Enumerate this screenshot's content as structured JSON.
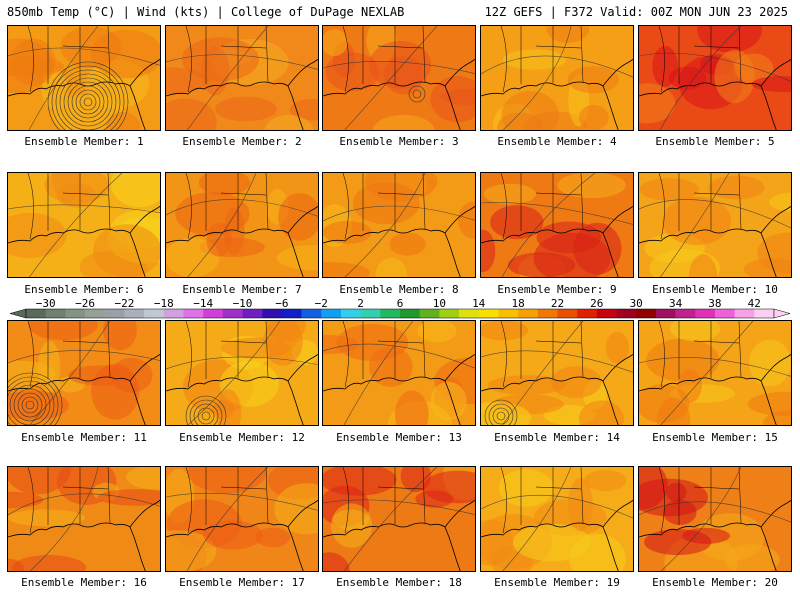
{
  "header": {
    "left": "850mb Temp (°C) | Wind (kts) | College of DuPage NEXLAB",
    "right": "12Z GEFS | F372 Valid: 00Z MON JUN 23 2025"
  },
  "colorbar": {
    "tick_labels": [
      "−30",
      "−26",
      "−22",
      "−18",
      "−14",
      "−10",
      "−6",
      "−2",
      "2",
      "6",
      "10",
      "14",
      "18",
      "22",
      "26",
      "30",
      "34",
      "38",
      "42"
    ],
    "min": -32,
    "max": 44,
    "step": 2,
    "colors": [
      "#5a6a5a",
      "#6e806e",
      "#849484",
      "#96a096",
      "#9aa0a8",
      "#aab0bc",
      "#c0c8d8",
      "#d0a0e0",
      "#e070e8",
      "#d040d8",
      "#a030c8",
      "#7020c0",
      "#3010b0",
      "#1020c8",
      "#1060e0",
      "#10a0f0",
      "#30d0e8",
      "#30d0b0",
      "#20b860",
      "#209830",
      "#60b020",
      "#a0d010",
      "#e0e010",
      "#f8e000",
      "#f8c000",
      "#f8a000",
      "#f07800",
      "#e85000",
      "#e02000",
      "#c80010",
      "#a00020",
      "#900000",
      "#a01060",
      "#c02090",
      "#e030b8",
      "#f060d8",
      "#f8a0e8",
      "#fcd0f0"
    ]
  },
  "members": [
    {
      "label": "Ensemble Member: 1",
      "base": "#f39b14",
      "hot": "#ef7a10",
      "cool": "#f7b81c"
    },
    {
      "label": "Ensemble Member: 2",
      "base": "#f0881a",
      "hot": "#ec6818",
      "cool": "#f5ac20"
    },
    {
      "label": "Ensemble Member: 3",
      "base": "#ef7a15",
      "hot": "#e9521a",
      "cool": "#f6a91c"
    },
    {
      "label": "Ensemble Member: 4",
      "base": "#f49f16",
      "hot": "#ef7a14",
      "cool": "#f8c21c"
    },
    {
      "label": "Ensemble Member: 5",
      "base": "#ea4a15",
      "hot": "#d8141c",
      "cool": "#f2821a"
    },
    {
      "label": "Ensemble Member: 6",
      "base": "#f5b018",
      "hot": "#f08a14",
      "cool": "#f8d41c"
    },
    {
      "label": "Ensemble Member: 7",
      "base": "#f29416",
      "hot": "#ec6414",
      "cool": "#f7b41a"
    },
    {
      "label": "Ensemble Member: 8",
      "base": "#f39a16",
      "hot": "#ef7412",
      "cool": "#f7bc1c"
    },
    {
      "label": "Ensemble Member: 9",
      "base": "#ef7a14",
      "hot": "#d82018",
      "cool": "#f6ac1a"
    },
    {
      "label": "Ensemble Member: 10",
      "base": "#f4a418",
      "hot": "#f08214",
      "cool": "#f8c81c"
    },
    {
      "label": "Ensemble Member: 11",
      "base": "#f28c16",
      "hot": "#ec5c16",
      "cool": "#f6b41a"
    },
    {
      "label": "Ensemble Member: 12",
      "base": "#f5aa18",
      "hot": "#f08214",
      "cool": "#f8d21c"
    },
    {
      "label": "Ensemble Member: 13",
      "base": "#f39a16",
      "hot": "#ee6a14",
      "cool": "#f7bc1a"
    },
    {
      "label": "Ensemble Member: 14",
      "base": "#f5a818",
      "hot": "#f08414",
      "cool": "#f8d01c"
    },
    {
      "label": "Ensemble Member: 15",
      "base": "#f4a416",
      "hot": "#f07a12",
      "cool": "#f8c81c"
    },
    {
      "label": "Ensemble Member: 16",
      "base": "#f08a16",
      "hot": "#e84a18",
      "cool": "#f5b01a"
    },
    {
      "label": "Ensemble Member: 17",
      "base": "#f08618",
      "hot": "#ec5c16",
      "cool": "#f5ae1a"
    },
    {
      "label": "Ensemble Member: 18",
      "base": "#ee7a16",
      "hot": "#dc2418",
      "cool": "#f5b01a"
    },
    {
      "label": "Ensemble Member: 19",
      "base": "#f5ac18",
      "hot": "#f08a14",
      "cool": "#f8cc1c"
    },
    {
      "label": "Ensemble Member: 20",
      "base": "#ef8018",
      "hot": "#d41418",
      "cool": "#f5aa1a"
    }
  ]
}
